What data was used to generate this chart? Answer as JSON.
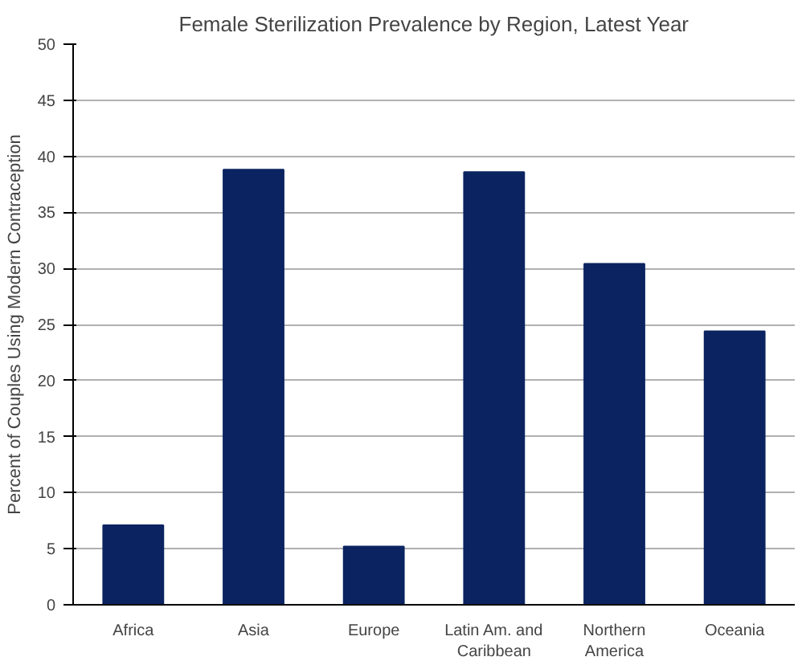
{
  "chart_data": {
    "type": "bar",
    "title": "Female Sterilization Prevalence by Region, Latest Year",
    "ylabel": "Percent of Couples Using Modern Contraception",
    "categories": [
      "Africa",
      "Asia",
      "Europe",
      "Latin Am. and\nCaribbean",
      "Northern\nAmerica",
      "Oceania"
    ],
    "values": [
      7.1,
      38.8,
      5.2,
      38.6,
      30.4,
      24.4
    ],
    "color": "#0b2461",
    "ylim": [
      0,
      50
    ],
    "yticks": [
      0,
      5,
      10,
      15,
      20,
      25,
      30,
      35,
      40,
      45,
      50
    ],
    "grid": "y"
  }
}
